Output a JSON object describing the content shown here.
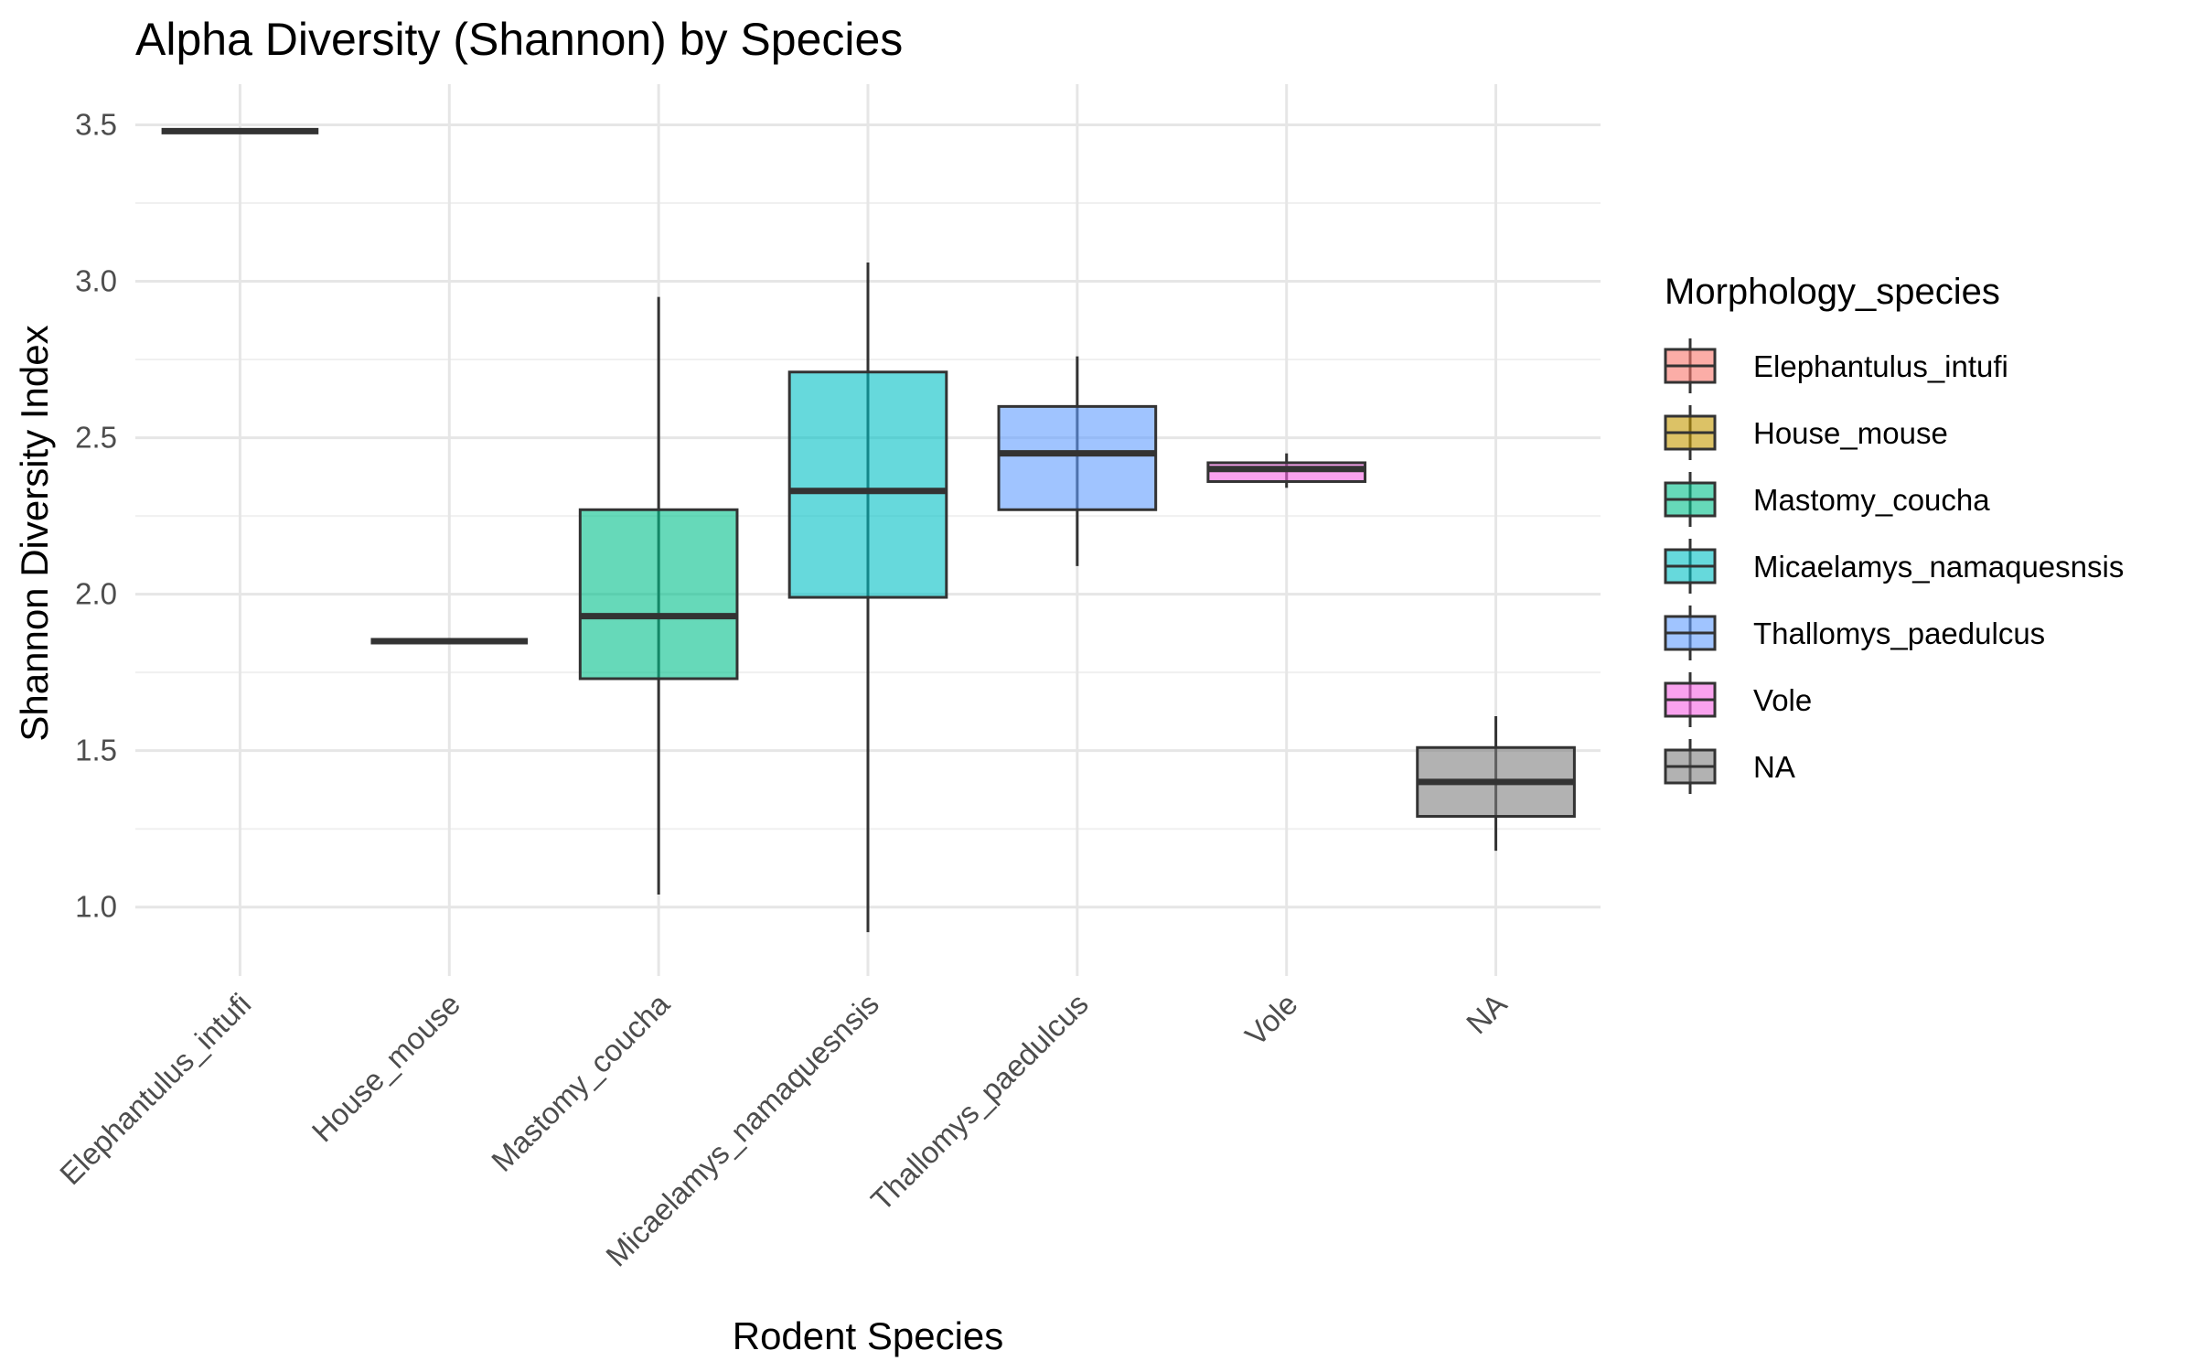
{
  "chart_data": {
    "type": "boxplot",
    "title": "Alpha Diversity (Shannon) by Species",
    "xlabel": "Rodent Species",
    "ylabel": "Shannon Diversity Index",
    "ylim": [
      0.78,
      3.63
    ],
    "y_ticks": [
      1.0,
      1.5,
      2.0,
      2.5,
      3.0,
      3.5
    ],
    "y_tick_labels": [
      "1.0",
      "1.5",
      "2.0",
      "2.5",
      "3.0",
      "3.5"
    ],
    "grid": true,
    "legend_position": "right",
    "legend_title": "Morphology_species",
    "categories": [
      "Elephantulus_intufi",
      "House_mouse",
      "Mastomy_coucha",
      "Micaelamys_namaquesnsis",
      "Thallomys_paedulcus",
      "Vole",
      "NA"
    ],
    "series": [
      {
        "name": "Elephantulus_intufi",
        "color": "#F8766D",
        "min": 3.48,
        "q1": 3.48,
        "median": 3.48,
        "q3": 3.48,
        "max": 3.48
      },
      {
        "name": "House_mouse",
        "color": "#C49A00",
        "min": 1.85,
        "q1": 1.85,
        "median": 1.85,
        "q3": 1.85,
        "max": 1.85
      },
      {
        "name": "Mastomy_coucha",
        "color": "#00C08B",
        "min": 1.04,
        "q1": 1.73,
        "median": 1.93,
        "q3": 2.27,
        "max": 2.95
      },
      {
        "name": "Micaelamys_namaquesnsis",
        "color": "#00BFC4",
        "min": 0.92,
        "q1": 1.99,
        "median": 2.33,
        "q3": 2.71,
        "max": 3.06
      },
      {
        "name": "Thallomys_paedulcus",
        "color": "#619CFF",
        "min": 2.09,
        "q1": 2.27,
        "median": 2.45,
        "q3": 2.6,
        "max": 2.76
      },
      {
        "name": "Vole",
        "color": "#F564E3",
        "min": 2.34,
        "q1": 2.36,
        "median": 2.4,
        "q3": 2.42,
        "max": 2.45
      },
      {
        "name": "NA",
        "color": "#7F7F7F",
        "min": 1.18,
        "q1": 1.29,
        "median": 1.4,
        "q3": 1.51,
        "max": 1.61
      }
    ]
  }
}
